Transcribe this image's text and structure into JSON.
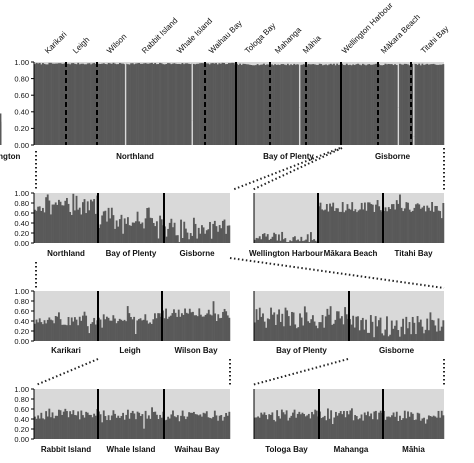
{
  "figure": {
    "colors": {
      "background": "#d9d9d9",
      "bar": "#595959",
      "divider": "#000000",
      "axis": "#000000",
      "connector": "#222222"
    }
  },
  "chart_data": [
    {
      "id": "top",
      "type": "bar",
      "ylim": [
        0,
        1
      ],
      "yticks": [
        0.0,
        0.2,
        0.4,
        0.6,
        0.8,
        1.0
      ],
      "ytick_labels": [
        "0.00",
        "0.20",
        "0.40",
        "0.60",
        "0.80",
        "1.00"
      ],
      "populations": [
        "Karikari",
        "Leigh",
        "Wilson",
        "Rabbit Island",
        "Whale Island",
        "Waihau Bay",
        "Tologa Bay",
        "Mahanga",
        "Māhia",
        "Wellington Harbour",
        "Mākara Beach",
        "Titahi Bay"
      ],
      "groups": [
        {
          "label": "Northland",
          "proportion": 0.98,
          "low_spikes": [
            {
              "at": 0.45,
              "value": 0.5
            },
            {
              "at": 0.78,
              "value": 0.3
            }
          ]
        },
        {
          "label": "Bay of Plenty",
          "proportion": 0.97,
          "low_spikes": [
            {
              "at": 0.6,
              "value": 0.45
            }
          ]
        },
        {
          "label": "Gisborne",
          "proportion": 0.97,
          "low_spikes": [
            {
              "at": 0.55,
              "value": 0.45
            },
            {
              "at": 0.7,
              "value": 0.1
            }
          ]
        },
        {
          "label": "Wellington",
          "proportion": 0.06,
          "high_spikes": [
            {
              "at": 0.05,
              "value": 0.38
            },
            {
              "at": 0.12,
              "value": 0.25
            },
            {
              "at": 0.55,
              "value": 0.28
            }
          ]
        }
      ]
    },
    {
      "id": "north",
      "type": "bar",
      "ylim": [
        0,
        1
      ],
      "yticks": [
        0.0,
        0.2,
        0.4,
        0.6,
        0.8,
        1.0
      ],
      "ytick_labels": [
        "0.00",
        "0.20",
        "0.40",
        "0.60",
        "0.80",
        "1.00"
      ],
      "groups": [
        {
          "label": "Northland",
          "proportion": 0.78
        },
        {
          "label": "Bay of Plenty",
          "proportion": 0.5
        },
        {
          "label": "Gisborne",
          "proportion": 0.28
        }
      ]
    },
    {
      "id": "wellington",
      "type": "bar",
      "ylim": [
        0,
        1
      ],
      "groups": [
        {
          "label": "Wellington Harbour",
          "proportion": 0.12
        },
        {
          "label": "Mākara Beach",
          "proportion": 0.72
        },
        {
          "label": "Titahi Bay",
          "proportion": 0.72
        }
      ]
    },
    {
      "id": "northland-sites",
      "type": "bar",
      "ylim": [
        0,
        1
      ],
      "yticks": [
        0.0,
        0.2,
        0.4,
        0.6,
        0.8,
        1.0
      ],
      "ytick_labels": [
        "0.00",
        "0.20",
        "0.40",
        "0.60",
        "0.80",
        "1.00"
      ],
      "groups": [
        {
          "label": "Karikari",
          "proportion": 0.4
        },
        {
          "label": "Leigh",
          "proportion": 0.45
        },
        {
          "label": "Wilson Bay",
          "proportion": 0.55
        }
      ]
    },
    {
      "id": "bop-gisborne",
      "type": "bar",
      "ylim": [
        0,
        1
      ],
      "groups": [
        {
          "label": "Bay of Plenty",
          "proportion": 0.48
        },
        {
          "label": "Gisborne",
          "proportion": 0.3
        }
      ]
    },
    {
      "id": "bop-sites",
      "type": "bar",
      "ylim": [
        0,
        1
      ],
      "yticks": [
        0.0,
        0.2,
        0.4,
        0.6,
        0.8,
        1.0
      ],
      "ytick_labels": [
        "0.00",
        "0.20",
        "0.40",
        "0.60",
        "0.80",
        "1.00"
      ],
      "groups": [
        {
          "label": "Rabbit Island",
          "proportion": 0.5
        },
        {
          "label": "Whale Island",
          "proportion": 0.48
        },
        {
          "label": "Waihau Bay",
          "proportion": 0.46
        }
      ]
    },
    {
      "id": "gisborne-sites",
      "type": "bar",
      "ylim": [
        0,
        1
      ],
      "groups": [
        {
          "label": "Tologa Bay",
          "proportion": 0.48
        },
        {
          "label": "Mahanga",
          "proportion": 0.47
        },
        {
          "label": "Māhia",
          "proportion": 0.46
        }
      ]
    }
  ]
}
